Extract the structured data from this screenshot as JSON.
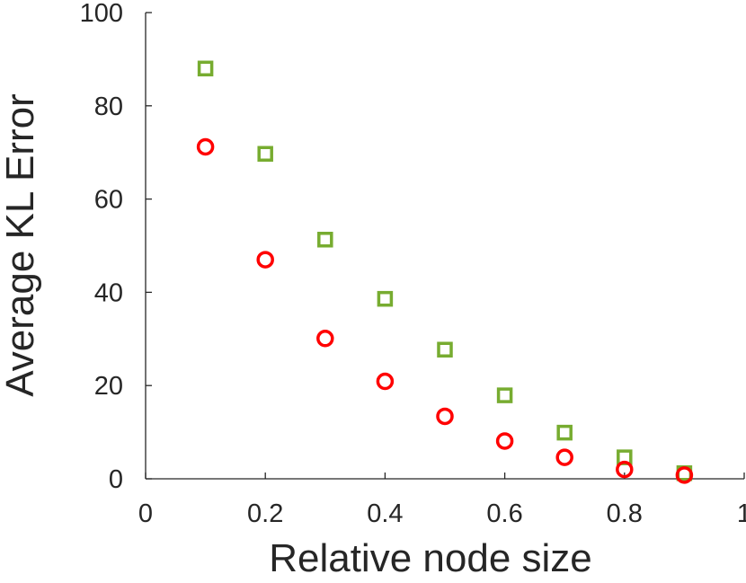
{
  "chart_data": {
    "type": "scatter",
    "xlabel": "Relative node size",
    "ylabel": "Average KL Error",
    "xlim": [
      0,
      1
    ],
    "ylim": [
      0,
      100
    ],
    "xticks": [
      "0",
      "0.2",
      "0.4",
      "0.6",
      "0.8",
      "1"
    ],
    "yticks": [
      "0",
      "20",
      "40",
      "60",
      "80",
      "100"
    ],
    "grid": false,
    "legend": "none",
    "series": [
      {
        "marker": "square",
        "color": "#77ac30",
        "x": [
          0.1,
          0.2,
          0.3,
          0.4,
          0.5,
          0.6,
          0.7,
          0.8,
          0.9
        ],
        "y": [
          88.0,
          69.7,
          51.3,
          38.6,
          27.7,
          17.9,
          9.9,
          4.6,
          1.2
        ]
      },
      {
        "marker": "circle",
        "color": "#ff0000",
        "x": [
          0.1,
          0.2,
          0.3,
          0.4,
          0.5,
          0.6,
          0.7,
          0.8,
          0.9
        ],
        "y": [
          71.2,
          47.0,
          30.1,
          20.9,
          13.4,
          8.1,
          4.6,
          2.0,
          0.8
        ]
      }
    ]
  }
}
